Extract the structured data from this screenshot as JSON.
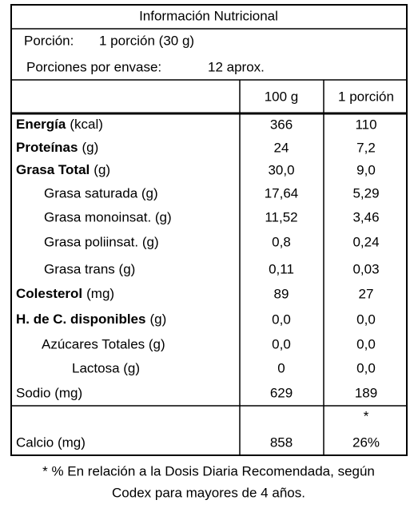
{
  "title": "Información Nutricional",
  "portion": {
    "label": "Porción:",
    "value": "1 porción (30 g)"
  },
  "servings": {
    "label": "Porciones por envase:",
    "value": "12 aprox."
  },
  "table": {
    "columns": [
      "100 g",
      "1 porción"
    ],
    "rows": [
      {
        "bold": "Energía",
        "label": "(kcal)",
        "values": [
          "366",
          "110"
        ]
      },
      {
        "bold": "Proteínas",
        "label": "(g)",
        "values": [
          "24",
          "7,2"
        ]
      },
      {
        "bold": "Grasa Total",
        "label": "(g)",
        "values": [
          "30,0",
          "9,0"
        ]
      },
      {
        "label": "Grasa saturada (g)",
        "values": [
          "17,64",
          "5,29"
        ]
      },
      {
        "label": "Grasa monoinsat. (g)",
        "values": [
          "11,52",
          "3,46"
        ]
      },
      {
        "label": "Grasa poliinsat. (g)",
        "values": [
          "0,8",
          "0,24"
        ]
      },
      {
        "label": "Grasa trans (g)",
        "values": [
          "0,11",
          "0,03"
        ]
      },
      {
        "bold": "Colesterol",
        "label": "(mg)",
        "values": [
          "89",
          "27"
        ]
      },
      {
        "bold": "H. de C. disponibles",
        "label": "(g)",
        "values": [
          "0,0",
          "0,0"
        ]
      },
      {
        "label": "Azúcares Totales (g)",
        "values": [
          "0,0",
          "0,0"
        ]
      },
      {
        "label": "Lactosa (g)",
        "values": [
          "0",
          "0,0"
        ]
      },
      {
        "label": "Sodio (mg)",
        "values": [
          "629",
          "189"
        ]
      }
    ],
    "calcium": {
      "label": "Calcio (mg)",
      "values": [
        "858",
        "26%"
      ],
      "marker": "*"
    }
  },
  "footnote": [
    "* % En relación a la Dosis Diaria Recomendada, según",
    "Codex para mayores de 4 años."
  ]
}
